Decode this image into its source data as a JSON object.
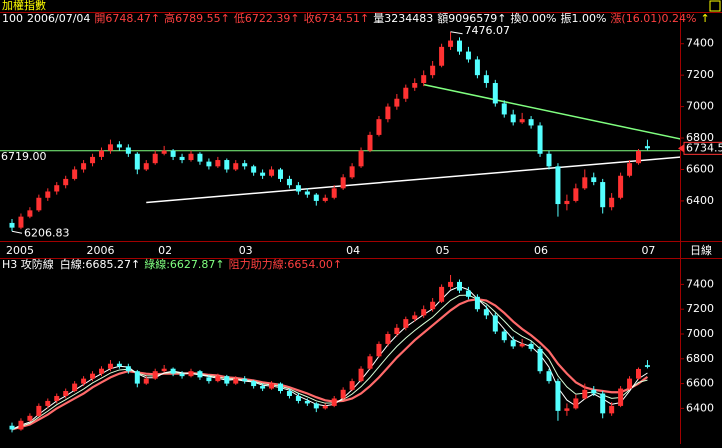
{
  "chart_data": {
    "type": "candlestick",
    "title": "加權指數",
    "header": [
      {
        "text": "100",
        "color": "#ffffff"
      },
      {
        "text": "2006/07/04",
        "color": "#ffffff"
      },
      {
        "text": "開6748.47↑",
        "color": "#ff4040"
      },
      {
        "text": "高6789.55↑",
        "color": "#ff4040"
      },
      {
        "text": "低6722.39↑",
        "color": "#ff4040"
      },
      {
        "text": "收6734.51↑",
        "color": "#ff4040"
      },
      {
        "text": "量3234483",
        "color": "#ffffff"
      },
      {
        "text": "額9096579↑",
        "color": "#ffffff"
      },
      {
        "text": "換0.00%",
        "color": "#ffffff"
      },
      {
        "text": "振1.00%",
        "color": "#ffffff"
      },
      {
        "text": "漲(16.01)0.24%",
        "color": "#ff4040"
      },
      {
        "text": "↑",
        "color": "#ffff00"
      }
    ],
    "period_label": "日線",
    "up_color": "#ff3232",
    "down_color": "#54ffff",
    "categories": [
      "2005",
      null,
      null,
      null,
      null,
      null,
      null,
      null,
      null,
      "2006",
      null,
      null,
      null,
      null,
      null,
      null,
      null,
      "02",
      null,
      null,
      null,
      null,
      null,
      null,
      null,
      null,
      "03",
      null,
      null,
      null,
      null,
      null,
      null,
      null,
      null,
      null,
      null,
      null,
      "04",
      null,
      null,
      null,
      null,
      null,
      null,
      null,
      null,
      null,
      "05",
      null,
      null,
      null,
      null,
      null,
      null,
      null,
      null,
      null,
      null,
      "06",
      null,
      null,
      null,
      null,
      null,
      null,
      null,
      null,
      null,
      null,
      null,
      "07"
    ],
    "candles": [
      [
        6260,
        6285,
        6206.83,
        6230
      ],
      [
        6230,
        6320,
        6220,
        6300
      ],
      [
        6300,
        6360,
        6290,
        6340
      ],
      [
        6340,
        6440,
        6330,
        6420
      ],
      [
        6420,
        6480,
        6400,
        6460
      ],
      [
        6460,
        6520,
        6440,
        6500
      ],
      [
        6500,
        6560,
        6480,
        6540
      ],
      [
        6540,
        6620,
        6530,
        6600
      ],
      [
        6600,
        6660,
        6580,
        6640
      ],
      [
        6640,
        6700,
        6620,
        6680
      ],
      [
        6680,
        6740,
        6660,
        6720
      ],
      [
        6720,
        6790,
        6700,
        6760
      ],
      [
        6760,
        6780,
        6720,
        6740
      ],
      [
        6740,
        6760,
        6680,
        6700
      ],
      [
        6700,
        6710,
        6570,
        6600
      ],
      [
        6600,
        6660,
        6590,
        6640
      ],
      [
        6640,
        6720,
        6630,
        6700
      ],
      [
        6700,
        6750,
        6690,
        6720
      ],
      [
        6720,
        6730,
        6660,
        6680
      ],
      [
        6680,
        6700,
        6640,
        6660
      ],
      [
        6660,
        6720,
        6650,
        6700
      ],
      [
        6700,
        6710,
        6630,
        6650
      ],
      [
        6650,
        6670,
        6600,
        6620
      ],
      [
        6620,
        6680,
        6610,
        6660
      ],
      [
        6660,
        6670,
        6580,
        6600
      ],
      [
        6600,
        6660,
        6590,
        6640
      ],
      [
        6640,
        6660,
        6600,
        6620
      ],
      [
        6620,
        6630,
        6560,
        6580
      ],
      [
        6580,
        6600,
        6540,
        6560
      ],
      [
        6560,
        6620,
        6550,
        6600
      ],
      [
        6600,
        6610,
        6520,
        6540
      ],
      [
        6540,
        6560,
        6480,
        6500
      ],
      [
        6500,
        6520,
        6440,
        6460
      ],
      [
        6460,
        6480,
        6420,
        6440
      ],
      [
        6440,
        6450,
        6370,
        6400
      ],
      [
        6400,
        6440,
        6390,
        6420
      ],
      [
        6420,
        6500,
        6410,
        6480
      ],
      [
        6480,
        6570,
        6470,
        6550
      ],
      [
        6550,
        6640,
        6540,
        6620
      ],
      [
        6620,
        6740,
        6610,
        6720
      ],
      [
        6720,
        6840,
        6710,
        6820
      ],
      [
        6820,
        6940,
        6810,
        6920
      ],
      [
        6920,
        7020,
        6900,
        7000
      ],
      [
        7000,
        7080,
        6980,
        7050
      ],
      [
        7050,
        7140,
        7030,
        7120
      ],
      [
        7120,
        7180,
        7100,
        7150
      ],
      [
        7150,
        7230,
        7130,
        7200
      ],
      [
        7200,
        7290,
        7180,
        7260
      ],
      [
        7260,
        7400,
        7250,
        7380
      ],
      [
        7380,
        7476.07,
        7360,
        7420
      ],
      [
        7420,
        7440,
        7330,
        7350
      ],
      [
        7350,
        7380,
        7280,
        7300
      ],
      [
        7300,
        7320,
        7180,
        7200
      ],
      [
        7200,
        7230,
        7120,
        7150
      ],
      [
        7150,
        7170,
        7000,
        7020
      ],
      [
        7020,
        7040,
        6930,
        6950
      ],
      [
        6950,
        6980,
        6880,
        6900
      ],
      [
        6900,
        6960,
        6890,
        6920
      ],
      [
        6920,
        6940,
        6860,
        6880
      ],
      [
        6880,
        6900,
        6680,
        6700
      ],
      [
        6700,
        6720,
        6600,
        6620
      ],
      [
        6620,
        6640,
        6300,
        6380
      ],
      [
        6380,
        6440,
        6340,
        6400
      ],
      [
        6400,
        6510,
        6390,
        6480
      ],
      [
        6480,
        6600,
        6470,
        6550
      ],
      [
        6550,
        6580,
        6500,
        6520
      ],
      [
        6520,
        6540,
        6320,
        6360
      ],
      [
        6360,
        6450,
        6340,
        6420
      ],
      [
        6420,
        6580,
        6410,
        6560
      ],
      [
        6560,
        6660,
        6550,
        6640
      ],
      [
        6640,
        6730,
        6630,
        6718
      ],
      [
        6748.47,
        6789.55,
        6722.39,
        6734.51
      ]
    ],
    "ylim": [
      6145,
      7500
    ],
    "yticks": [
      6400,
      6600,
      6800,
      7000,
      7200,
      7400
    ],
    "reference_line": {
      "value": 6719,
      "label": "6719.00",
      "color": "#80ff80"
    },
    "last_price": 6734.5,
    "trendlines": [
      {
        "color": "#80ff80",
        "x": [
          46,
          75
        ],
        "values": [
          7140,
          6790
        ]
      },
      {
        "color": "#ffffff",
        "x": [
          15,
          75
        ],
        "values": [
          6390,
          6680
        ]
      }
    ],
    "indicator": {
      "title": "H3 攻防線",
      "labels": [
        {
          "text": "白線:6685.27↑",
          "color": "#ffffff"
        },
        {
          "text": "綠線:6627.87↑",
          "color": "#80ff80"
        },
        {
          "text": "阻力助力線:6654.00↑",
          "color": "#ff4040"
        }
      ],
      "series": [
        {
          "name": "阻力助力線",
          "color": "#ff6a6a",
          "width": 2.2,
          "values": [
            6230,
            6250,
            6270,
            6310,
            6350,
            6400,
            6440,
            6480,
            6520,
            6570,
            6610,
            6650,
            6680,
            6700,
            6690,
            6680,
            6675,
            6680,
            6680,
            6680,
            6685,
            6680,
            6670,
            6665,
            6650,
            6645,
            6635,
            6625,
            6610,
            6600,
            6590,
            6570,
            6545,
            6520,
            6490,
            6465,
            6455,
            6460,
            6480,
            6520,
            6580,
            6650,
            6730,
            6810,
            6880,
            6950,
            7010,
            7070,
            7130,
            7190,
            7240,
            7270,
            7280,
            7270,
            7230,
            7170,
            7100,
            7040,
            6990,
            6930,
            6860,
            6760,
            6680,
            6610,
            6570,
            6550,
            6540,
            6530,
            6530,
            6560,
            6600,
            6654
          ]
        },
        {
          "name": "綠線",
          "color": "#d8ffd8",
          "width": 1,
          "values": [
            6230,
            6255,
            6280,
            6330,
            6378,
            6430,
            6470,
            6513,
            6556,
            6605,
            6645,
            6685,
            6710,
            6716,
            6685,
            6663,
            6660,
            6683,
            6690,
            6683,
            6682,
            6675,
            6663,
            6654,
            6638,
            6639,
            6627,
            6619,
            6598,
            6590,
            6578,
            6558,
            6522,
            6493,
            6461,
            6442,
            6444,
            6471,
            6515,
            6575,
            6650,
            6735,
            6821,
            6900,
            6968,
            7028,
            7083,
            7136,
            7205,
            7271,
            7311,
            7313,
            7281,
            7243,
            7176,
            7105,
            7028,
            6981,
            6945,
            6881,
            6796,
            6663,
            6573,
            6515,
            6523,
            6533,
            6508,
            6481,
            6488,
            6550,
            6610,
            6627.87
          ]
        },
        {
          "name": "白線",
          "color": "#ffffff",
          "width": 1,
          "values": [
            6230,
            6265,
            6290,
            6353,
            6407,
            6460,
            6500,
            6547,
            6593,
            6640,
            6680,
            6720,
            6740,
            6733,
            6680,
            6647,
            6647,
            6687,
            6700,
            6687,
            6680,
            6670,
            6657,
            6643,
            6627,
            6633,
            6620,
            6613,
            6587,
            6580,
            6567,
            6547,
            6500,
            6467,
            6433,
            6420,
            6433,
            6483,
            6550,
            6630,
            6720,
            6820,
            6913,
            6990,
            7057,
            7107,
            7157,
            7203,
            7280,
            7353,
            7383,
            7357,
            7283,
            7217,
            7123,
            7040,
            6957,
            6923,
            6900,
            6833,
            6733,
            6567,
            6467,
            6420,
            6477,
            6517,
            6477,
            6433,
            6447,
            6540,
            6639,
            6685.27
          ]
        }
      ]
    }
  }
}
